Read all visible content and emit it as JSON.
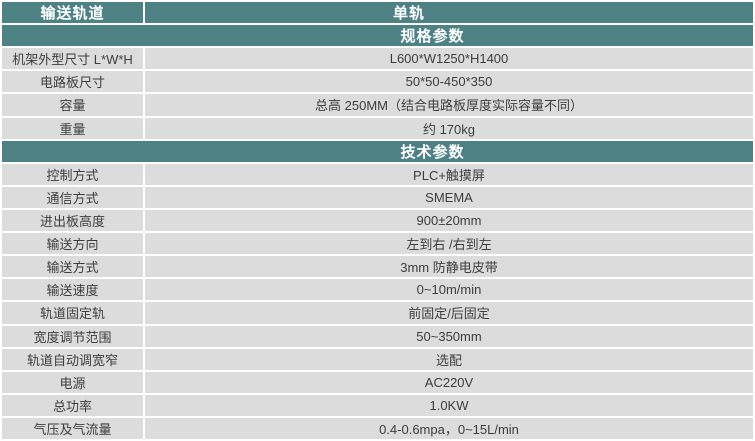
{
  "header": {
    "left": "输送轨道",
    "right": "单轨"
  },
  "table": {
    "sections": [
      {
        "title": "规格参数",
        "rows": [
          {
            "label": "机架外型尺寸 L*W*H",
            "value": "L600*W1250*H1400"
          },
          {
            "label": "电路板尺寸",
            "value": "50*50-450*350"
          },
          {
            "label": "容量",
            "value": "总高 250MM（结合电路板厚度实际容量不同）"
          },
          {
            "label": "重量",
            "value": "约 170kg"
          }
        ]
      },
      {
        "title": "技术参数",
        "rows": [
          {
            "label": "控制方式",
            "value": "PLC+触摸屏"
          },
          {
            "label": "通信方式",
            "value": "SMEMA"
          },
          {
            "label": "进出板高度",
            "value": "900±20mm"
          },
          {
            "label": "输送方向",
            "value": "左到右 /右到左"
          },
          {
            "label": "输送方式",
            "value": "3mm 防静电皮带"
          },
          {
            "label": "输送速度",
            "value": "0~10m/min"
          },
          {
            "label": "轨道固定轨",
            "value": "前固定/后固定"
          },
          {
            "label": "宽度调节范围",
            "value": "50~350mm"
          },
          {
            "label": "轨道自动调宽窄",
            "value": "选配"
          },
          {
            "label": "电源",
            "value": "AC220V"
          },
          {
            "label": "总功率",
            "value": "1.0KW"
          },
          {
            "label": "气压及气流量",
            "value": "0.4-0.6mpa，0~15L/min"
          }
        ]
      }
    ]
  },
  "colors": {
    "header_bg": "#4d8184",
    "row_bg": "#dcdcdc",
    "header_text": "#ffffff",
    "body_text": "#3d3d3d",
    "divider": "#ffffff"
  }
}
